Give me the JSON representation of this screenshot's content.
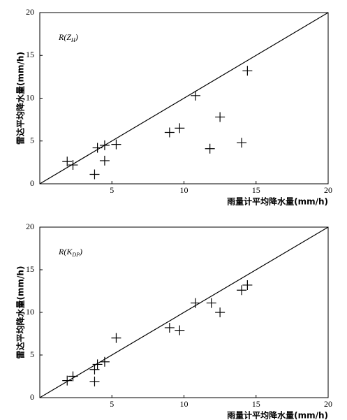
{
  "chart_data": [
    {
      "type": "scatter",
      "annotation": [
        "R(Z",
        "H",
        ")"
      ],
      "x_label": "雨量计平均降水量(mm/h)",
      "y_label": "雷达平均降水量(mm/h)",
      "x": [
        1.9,
        2.3,
        3.8,
        4.0,
        4.5,
        4.5,
        5.3,
        9.0,
        9.7,
        10.8,
        11.8,
        12.5,
        14.0,
        14.4
      ],
      "values": [
        2.6,
        2.2,
        1.1,
        4.2,
        4.5,
        2.7,
        4.6,
        6.0,
        6.5,
        10.3,
        4.1,
        7.8,
        4.8,
        13.2
      ],
      "color": "#000000",
      "xlim": [
        0,
        20
      ],
      "ylim": [
        0,
        20
      ],
      "xticks": [
        5,
        10,
        15,
        20
      ],
      "yticks": [
        0,
        5,
        10,
        15,
        20
      ]
    },
    {
      "type": "scatter",
      "annotation": [
        "R(K",
        "DP",
        ")"
      ],
      "x_label": "雨量计平均降水量(mm/h)",
      "y_label": "雷达平均降水量(mm/h)",
      "x": [
        1.9,
        2.3,
        3.8,
        3.8,
        4.0,
        4.5,
        5.3,
        9.0,
        9.7,
        10.8,
        11.9,
        12.5,
        14.0,
        14.4
      ],
      "values": [
        2.0,
        2.5,
        1.9,
        3.3,
        3.9,
        4.2,
        7.0,
        8.2,
        7.9,
        11.1,
        11.1,
        10.0,
        12.6,
        13.2
      ],
      "color": "#000000",
      "xlim": [
        0,
        20
      ],
      "ylim": [
        0,
        20
      ],
      "xticks": [
        5,
        10,
        15,
        20
      ],
      "yticks": [
        0,
        5,
        10,
        15,
        20
      ]
    }
  ]
}
